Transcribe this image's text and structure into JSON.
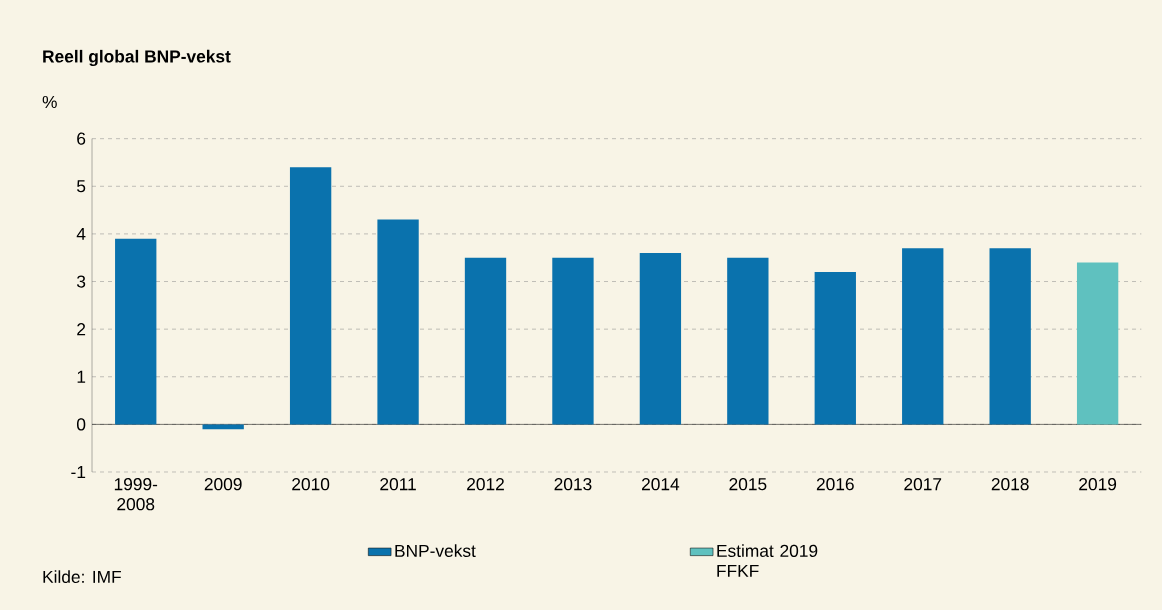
{
  "chart_data": {
    "type": "bar",
    "title": "Reell global BNP-vekst",
    "ylabel": "%",
    "categories": [
      "1999-2008",
      "2009",
      "2010",
      "2011",
      "2012",
      "2013",
      "2014",
      "2015",
      "2016",
      "2017",
      "2018",
      "2019"
    ],
    "series": [
      {
        "name": "BNP-vekst",
        "color": "#0a72ad",
        "values": [
          3.9,
          -0.1,
          5.4,
          4.3,
          3.5,
          3.5,
          3.6,
          3.5,
          3.2,
          3.7,
          3.7,
          null
        ]
      },
      {
        "name": "Estimat 2019 FFKF",
        "color": "#5fc1bf",
        "values": [
          null,
          null,
          null,
          null,
          null,
          null,
          null,
          null,
          null,
          null,
          null,
          3.4
        ]
      }
    ],
    "ylim": [
      -1,
      6
    ],
    "yticks": [
      -1,
      0,
      1,
      2,
      3,
      4,
      5,
      6
    ],
    "grid": "y",
    "legend": "bottom",
    "annotations": [
      "Kilde: IMF"
    ]
  }
}
